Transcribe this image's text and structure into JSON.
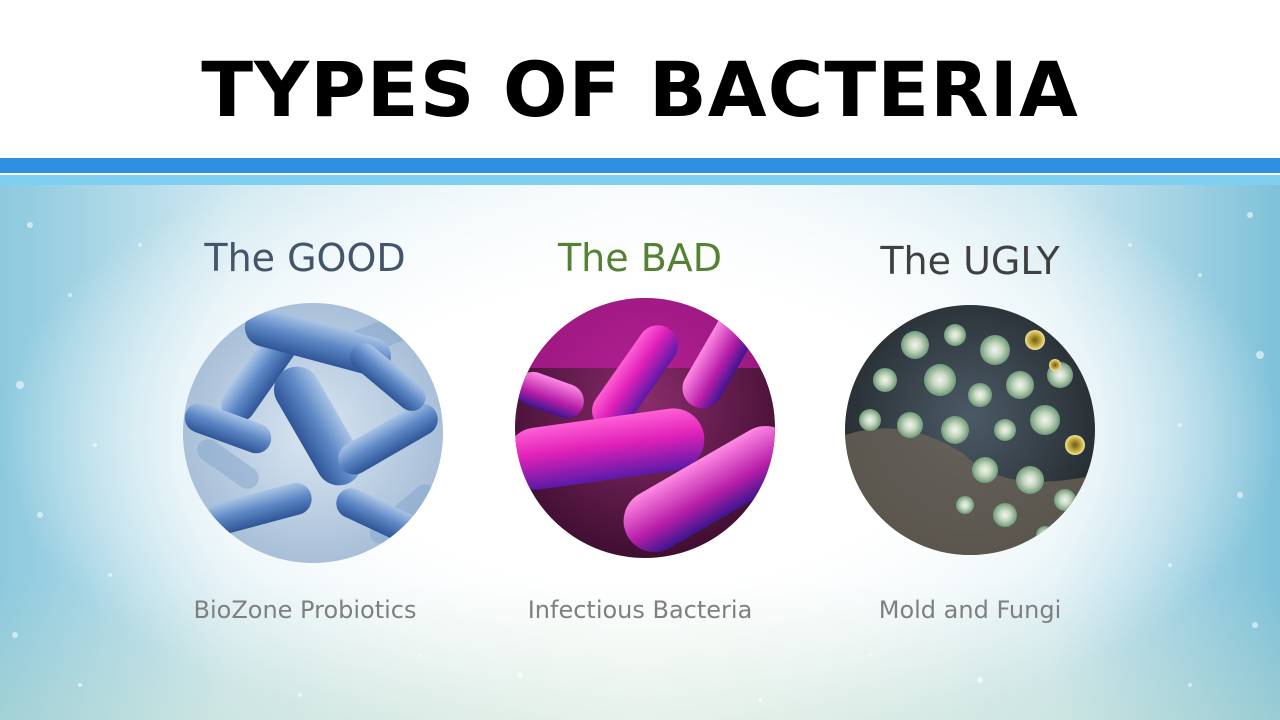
{
  "title": "TYPES OF BACTERIA",
  "columns": [
    {
      "heading": "The GOOD",
      "subtitle": "BioZone Probiotics",
      "heading_color": "#44546a",
      "image_icon": "blue-bacteria-image"
    },
    {
      "heading": "The BAD",
      "subtitle": "Infectious Bacteria",
      "heading_color": "#548235",
      "image_icon": "magenta-bacteria-image"
    },
    {
      "heading": "The UGLY",
      "subtitle": "Mold and Fungi",
      "heading_color": "#404040",
      "image_icon": "mold-petri-dish-image"
    }
  ],
  "colors": {
    "rule_dark": "#2f8fe0",
    "rule_light": "#7ecff0",
    "subtitle": "#7f7f7f"
  }
}
